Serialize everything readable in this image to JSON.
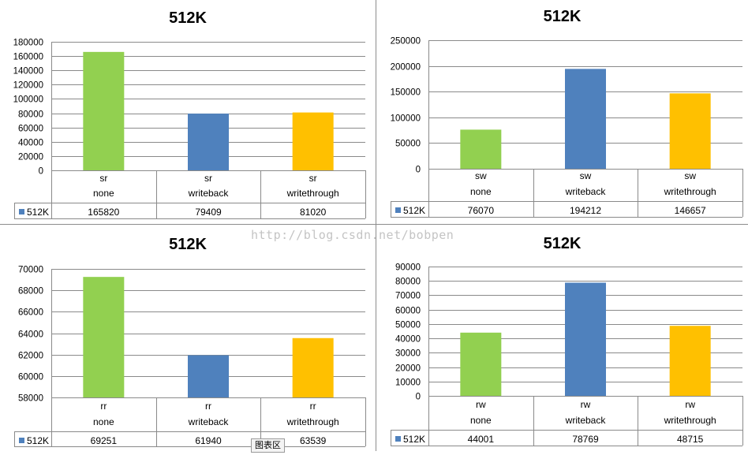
{
  "colors": {
    "none": "#92d050",
    "writeback": "#4f81bd",
    "writethrough": "#ffc000",
    "legend_key": "#4f81bd"
  },
  "watermark": "http://blog.csdn.net/bobpen",
  "tooltip": "图表区",
  "chart_data": [
    {
      "type": "bar",
      "title": "512K",
      "categories": [
        [
          "sr",
          "none"
        ],
        [
          "sr",
          "writeback"
        ],
        [
          "sr",
          "writethrough"
        ]
      ],
      "series": [
        {
          "name": "512K",
          "values": [
            165820,
            79409,
            81020
          ]
        }
      ],
      "ylim": [
        0,
        180000
      ],
      "yticks": [
        0,
        20000,
        40000,
        60000,
        80000,
        100000,
        120000,
        140000,
        160000,
        180000
      ],
      "grid": true,
      "data_table": true
    },
    {
      "type": "bar",
      "title": "512K",
      "categories": [
        [
          "sw",
          "none"
        ],
        [
          "sw",
          "writeback"
        ],
        [
          "sw",
          "writethrough"
        ]
      ],
      "series": [
        {
          "name": "512K",
          "values": [
            76070,
            194212,
            146657
          ]
        }
      ],
      "ylim": [
        0,
        250000
      ],
      "yticks": [
        0,
        50000,
        100000,
        150000,
        200000,
        250000
      ],
      "grid": true,
      "data_table": true
    },
    {
      "type": "bar",
      "title": "512K",
      "categories": [
        [
          "rr",
          "none"
        ],
        [
          "rr",
          "writeback"
        ],
        [
          "rr",
          "writethrough"
        ]
      ],
      "series": [
        {
          "name": "512K",
          "values": [
            69251,
            61940,
            63539
          ]
        }
      ],
      "ylim": [
        58000,
        70000
      ],
      "yticks": [
        58000,
        60000,
        62000,
        64000,
        66000,
        68000,
        70000
      ],
      "grid": true,
      "data_table": true
    },
    {
      "type": "bar",
      "title": "512K",
      "categories": [
        [
          "rw",
          "none"
        ],
        [
          "rw",
          "writeback"
        ],
        [
          "rw",
          "writethrough"
        ]
      ],
      "series": [
        {
          "name": "512K",
          "values": [
            44001,
            78769,
            48715
          ]
        }
      ],
      "ylim": [
        0,
        90000
      ],
      "yticks": [
        0,
        10000,
        20000,
        30000,
        40000,
        50000,
        60000,
        70000,
        80000,
        90000
      ],
      "grid": true,
      "data_table": true
    }
  ]
}
